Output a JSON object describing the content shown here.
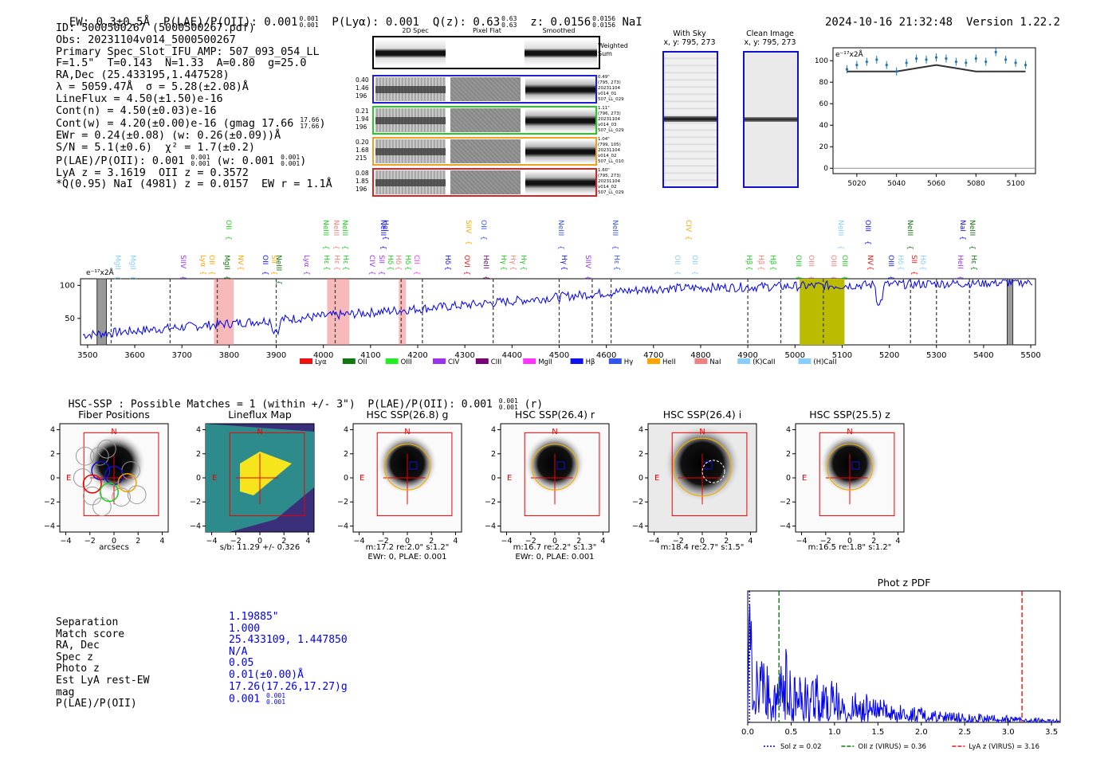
{
  "header": {
    "ew": "EW: 0.3±0.5Å",
    "plae": "P(LAE)/P(OII): 0.001",
    "plae_hi": "0.001",
    "plae_lo": "0.001",
    "plya": "P(Lyα): 0.001",
    "qz": "Q(z): 0.63",
    "qz_hi": "0.63",
    "qz_lo": "0.63",
    "z": "z: 0.0156",
    "z_hi": "0.0156",
    "z_lo": "0.0156",
    "line": "NaI",
    "datetime": "2024-10-16 21:32:48",
    "version": "Version 1.22.2"
  },
  "info": {
    "lines": [
      "ID: 5000500267 (5000500267.pdf)",
      "Obs: 20231104v014_5000500267",
      "Primary Spec_Slot_IFU_AMP: 507_093_054_LL",
      "F=1.5\"  T=0.143  N=1.33  A=0.80  g=25.0",
      "RA,Dec (25.433195,1.447528)",
      "λ = 5059.47Å  σ = 5.28(±2.08)Å",
      "LineFlux = 4.50(±1.50)e-16",
      "Cont(n) = 4.50(±0.03)e-16"
    ],
    "cont_w": "Cont(w) = 4.20(±0.00)e-16 (gmag 17.66",
    "cont_w_hi": "17.66",
    "cont_w_lo": "17.66",
    "cont_w_close": ")",
    "ewr": "EWr = 0.24(±0.08) (w: 0.26(±0.09))Å",
    "sn": "S/N = 5.1(±0.6)  χ² = 1.7(±0.2)",
    "plae": "P(LAE)/P(OII): 0.001",
    "plae_hi": "0.001",
    "plae_lo": "0.001",
    "plae_w": "(w: 0.001",
    "plae_w_hi": "0.001",
    "plae_w_lo": "0.001",
    "plae_w_close": ")",
    "lya": "LyA z = 3.1619  OII z = 0.3572",
    "q": "*Q(0.95) NaI (4981) z = 0.0157  EW r = 1.1Å"
  },
  "cutouts": {
    "headers": [
      "2D Spec",
      "Pixel Flat",
      "Smoothed"
    ],
    "weighted_sum": "Weighted Sum",
    "rows": [
      {
        "left": [
          "0.40",
          "1.46",
          "196"
        ],
        "right": [
          "0.49\"",
          "(795, 273)",
          "20231104",
          "v014_01",
          "507_LL_029"
        ],
        "color": "#1f1fcf"
      },
      {
        "left": [
          "0.21",
          "1.94",
          "196"
        ],
        "right": [
          "1.11\"",
          "(796, 273)",
          "20231104",
          "v014_03",
          "507_LL_029"
        ],
        "color": "#22cc22"
      },
      {
        "left": [
          "0.20",
          "1.68",
          "215"
        ],
        "right": [
          "1.04\"",
          "(799, 105)",
          "20231104",
          "v014_02",
          "507_LL_010"
        ],
        "color": "#f0a020"
      },
      {
        "left": [
          "0.08",
          "1.85",
          "196"
        ],
        "right": [
          "1.60\"",
          "(795, 273)",
          "20231104",
          "v014_02",
          "507_LL_029"
        ],
        "color": "#e02020"
      }
    ]
  },
  "sky_images": [
    {
      "title": "With Sky",
      "coords": "x, y: 795, 273"
    },
    {
      "title": "Clean Image",
      "coords": "x, y: 795, 273"
    }
  ],
  "zoom_chart": {
    "unit_label": "e⁻¹⁷x2Å",
    "yticks": [
      "100",
      "80",
      "60",
      "40",
      "20",
      "0"
    ],
    "xticks": [
      "5020",
      "5040",
      "5060",
      "5080",
      "5100"
    ]
  },
  "spectrum": {
    "unit_label": "e⁻¹⁷x2Å",
    "yticks": [
      "100",
      "50"
    ],
    "xticks": [
      "3500",
      "3600",
      "3700",
      "3800",
      "3900",
      "4000",
      "4100",
      "4200",
      "4300",
      "4400",
      "4500",
      "4600",
      "4700",
      "4800",
      "4900",
      "5000",
      "5100",
      "5200",
      "5300",
      "5400",
      "5500"
    ],
    "legend": [
      {
        "label": "Lyα",
        "color": "#ee1111"
      },
      {
        "label": "OII",
        "color": "#117711"
      },
      {
        "label": "OIII",
        "color": "#22ee22"
      },
      {
        "label": "CIV",
        "color": "#9933ee"
      },
      {
        "label": "CIII",
        "color": "#770077"
      },
      {
        "label": "MgII",
        "color": "#ff33ff"
      },
      {
        "label": "Hβ",
        "color": "#1111ee"
      },
      {
        "label": "Hγ",
        "color": "#3355ee"
      },
      {
        "label": "HeII",
        "color": "#ffa500"
      },
      {
        "label": "NaI",
        "color": "#f08080"
      },
      {
        "label": "(K)CaII",
        "color": "#87cefa"
      },
      {
        "label": "(H)CaII",
        "color": "#87cefa"
      }
    ],
    "line_labels_top": [
      {
        "text": "OII",
        "x": 287,
        "color": "#22cc22"
      },
      {
        "text": "NeIII",
        "x": 409,
        "color": "#22cc22"
      },
      {
        "text": "NeIII",
        "x": 422,
        "color": "#f08080"
      },
      {
        "text": "NeIII",
        "x": 433,
        "color": "#22cc22"
      },
      {
        "text": "NeIII",
        "x": 481,
        "color": "#1111ee"
      },
      {
        "text": "HeI",
        "x": 484,
        "color": "#1111ee"
      },
      {
        "text": "SIIV",
        "x": 588,
        "color": "#ffa500"
      },
      {
        "text": "OII",
        "x": 607,
        "color": "#3355ee"
      },
      {
        "text": "NeIII",
        "x": 704,
        "color": "#3355ee"
      },
      {
        "text": "NeIII",
        "x": 772,
        "color": "#3355ee"
      },
      {
        "text": "CIV",
        "x": 864,
        "color": "#ffa500"
      },
      {
        "text": "NeIII",
        "x": 1055,
        "color": "#87cefa"
      },
      {
        "text": "OIII",
        "x": 1089,
        "color": "#1111ee"
      },
      {
        "text": "NeIII",
        "x": 1142,
        "color": "#117711"
      },
      {
        "text": "NaI",
        "x": 1208,
        "color": "#1111ee"
      },
      {
        "text": "NeIII",
        "x": 1220,
        "color": "#117711"
      }
    ],
    "line_labels_bottom": [
      {
        "text": "MgII",
        "x": 148,
        "color": "#87cefa"
      },
      {
        "text": "MgII",
        "x": 167,
        "color": "#87cefa"
      },
      {
        "text": "SIIV",
        "x": 230,
        "color": "#9933ee"
      },
      {
        "text": "Lyα",
        "x": 255,
        "color": "#ffa500"
      },
      {
        "text": "OII",
        "x": 266,
        "color": "#ffa500"
      },
      {
        "text": "MgII",
        "x": 285,
        "color": "#117711"
      },
      {
        "text": "NV",
        "x": 302,
        "color": "#ffa500"
      },
      {
        "text": "OII",
        "x": 333,
        "color": "#1111ee"
      },
      {
        "text": "SII",
        "x": 344,
        "color": "#ffa500"
      },
      {
        "text": "NeIII",
        "x": 350,
        "color": "#117711"
      },
      {
        "text": "Lyα",
        "x": 385,
        "color": "#9933ee"
      },
      {
        "text": "Hε",
        "x": 410,
        "color": "#22cc22"
      },
      {
        "text": "Hε",
        "x": 423,
        "color": "#f08080"
      },
      {
        "text": "Hε",
        "x": 434,
        "color": "#22cc22"
      },
      {
        "text": "CIV",
        "x": 467,
        "color": "#9933ee"
      },
      {
        "text": "SII",
        "x": 479,
        "color": "#9933ee"
      },
      {
        "text": "Hδ",
        "x": 490,
        "color": "#22cc22"
      },
      {
        "text": "Hδ",
        "x": 500,
        "color": "#f08080"
      },
      {
        "text": "Hδ",
        "x": 512,
        "color": "#22cc22"
      },
      {
        "text": "CII",
        "x": 523,
        "color": "#ff33ff"
      },
      {
        "text": "Hδ",
        "x": 562,
        "color": "#1111ee"
      },
      {
        "text": "OVI",
        "x": 586,
        "color": "#ee1111"
      },
      {
        "text": "HeII",
        "x": 610,
        "color": "#770077"
      },
      {
        "text": "Hγ",
        "x": 632,
        "color": "#22cc22"
      },
      {
        "text": "Hγ",
        "x": 644,
        "color": "#f08080"
      },
      {
        "text": "Hγ",
        "x": 657,
        "color": "#22cc22"
      },
      {
        "text": "Hγ",
        "x": 708,
        "color": "#1111ee"
      },
      {
        "text": "SIIV",
        "x": 738,
        "color": "#9933ee"
      },
      {
        "text": "Hε",
        "x": 774,
        "color": "#3355ee"
      },
      {
        "text": "OII",
        "x": 850,
        "color": "#87cefa"
      },
      {
        "text": "OII",
        "x": 872,
        "color": "#87cefa"
      },
      {
        "text": "Hβ",
        "x": 940,
        "color": "#22cc22"
      },
      {
        "text": "Hβ",
        "x": 955,
        "color": "#f08080"
      },
      {
        "text": "Hβ",
        "x": 970,
        "color": "#22cc22"
      },
      {
        "text": "OIII",
        "x": 1002,
        "color": "#22cc22"
      },
      {
        "text": "OIII",
        "x": 1018,
        "color": "#f08080"
      },
      {
        "text": "OIII",
        "x": 1046,
        "color": "#f08080"
      },
      {
        "text": "OIII",
        "x": 1060,
        "color": "#22cc22"
      },
      {
        "text": "NV",
        "x": 1092,
        "color": "#ee1111"
      },
      {
        "text": "OIII",
        "x": 1118,
        "color": "#1111ee"
      },
      {
        "text": "Hδ",
        "x": 1130,
        "color": "#87cefa"
      },
      {
        "text": "SII",
        "x": 1147,
        "color": "#ee1111"
      },
      {
        "text": "Hδ",
        "x": 1158,
        "color": "#87cefa"
      },
      {
        "text": "HeII",
        "x": 1205,
        "color": "#9933ee"
      },
      {
        "text": "Hε",
        "x": 1222,
        "color": "#117711"
      }
    ]
  },
  "hsc": {
    "heading": "HSC-SSP : Possible Matches = 1 (within +/- 3\")  P(LAE)/P(OII): 0.001",
    "heading_hi": "0.001",
    "heading_lo": "0.001",
    "heading_tail": "(r)",
    "panels": [
      {
        "title": "Fiber Positions",
        "caption1": "arcsecs",
        "caption2": ""
      },
      {
        "title": "Lineflux Map",
        "caption1": "s/b: 11.29 +/- 0.326",
        "caption2": ""
      },
      {
        "title": "HSC SSP(26.8) g",
        "caption1": "m:17.2  re:2.0\"  s:1.2\"",
        "caption2": "EWr: 0, PLAE: 0.001"
      },
      {
        "title": "HSC SSP(26.4) r",
        "caption1": "m:16.7  re:2.2\"  s:1.3\"",
        "caption2": "EWr: 0, PLAE: 0.001"
      },
      {
        "title": "HSC SSP(26.4) i",
        "caption1": "m:18.4  re:2.7\"  s:1.5\"",
        "caption2": ""
      },
      {
        "title": "HSC SSP(25.5) z",
        "caption1": "m:16.5  re:1.8\"  s:1.2\"",
        "caption2": ""
      }
    ],
    "xticks": [
      "−4",
      "−2",
      "0",
      "2",
      "4"
    ],
    "yticks": [
      "4",
      "2",
      "0",
      "−2",
      "−4"
    ],
    "north": "N",
    "east": "E"
  },
  "match": {
    "labels": [
      "Separation",
      "Match score",
      "RA, Dec",
      "Spec z",
      "Photo z",
      "Est LyA rest-EW",
      "mag",
      "P(LAE)/P(OII)"
    ],
    "values": [
      "1.19885\"",
      "1.000",
      "25.433109, 1.447850",
      "N/A",
      "0.05",
      "0.01(±0.00)Å",
      "17.26(17.26,17.27)g",
      "0.001"
    ],
    "plae_hi": "0.001",
    "plae_lo": "0.001"
  },
  "chart_data": [
    {
      "type": "line",
      "title": "Phot z PDF",
      "xlabel": "",
      "ylabel": "",
      "xlim": [
        0,
        3.6
      ],
      "xticks": [
        "0.0",
        "0.5",
        "1.0",
        "1.5",
        "2.0",
        "2.5",
        "3.0",
        "3.5"
      ],
      "vlines": [
        {
          "name": "Sol z = 0.02",
          "x": 0.02,
          "color": "#0000cc",
          "style": "dotted"
        },
        {
          "name": "OII z (VIRUS) = 0.36",
          "x": 0.36,
          "color": "#117711",
          "style": "dashed"
        },
        {
          "name": "LyA z (VIRUS) = 3.16",
          "x": 3.16,
          "color": "#ee1111",
          "style": "dashed"
        }
      ],
      "series": [
        {
          "name": "PDF",
          "x": [
            0.0,
            0.02,
            0.05,
            0.1,
            0.15,
            0.2,
            0.25,
            0.3,
            0.35,
            0.4,
            0.5,
            0.6,
            0.7,
            0.8,
            0.9,
            1.0,
            1.1,
            1.2,
            1.3,
            1.4,
            1.5,
            1.7,
            1.9,
            2.1,
            2.3,
            2.5,
            2.8,
            3.1,
            3.3,
            3.6
          ],
          "values": [
            0.1,
            1.0,
            0.55,
            0.5,
            0.45,
            0.4,
            0.35,
            0.3,
            0.28,
            0.6,
            0.3,
            0.35,
            0.32,
            0.3,
            0.28,
            0.26,
            0.22,
            0.2,
            0.2,
            0.18,
            0.15,
            0.12,
            0.1,
            0.08,
            0.07,
            0.06,
            0.05,
            0.04,
            0.03,
            0.02
          ]
        }
      ]
    },
    {
      "type": "line",
      "title": "",
      "xlabel": "",
      "ylabel": "e⁻¹⁷x2Å",
      "xlim": [
        5008,
        5110
      ],
      "ylim": [
        -5,
        112
      ],
      "series": [
        {
          "name": "model",
          "x": [
            5015,
            5040,
            5050,
            5060,
            5070,
            5080,
            5105
          ],
          "values": [
            90,
            90,
            93,
            96,
            93,
            90,
            90
          ]
        },
        {
          "name": "data",
          "x": [
            5015,
            5020,
            5025,
            5030,
            5035,
            5040,
            5045,
            5050,
            5055,
            5060,
            5065,
            5070,
            5075,
            5080,
            5085,
            5090,
            5095,
            5100,
            5105
          ],
          "values": [
            92,
            96,
            99,
            101,
            96,
            90,
            98,
            102,
            101,
            103,
            102,
            99,
            98,
            102,
            99,
            108,
            101,
            98,
            96
          ]
        }
      ]
    }
  ]
}
